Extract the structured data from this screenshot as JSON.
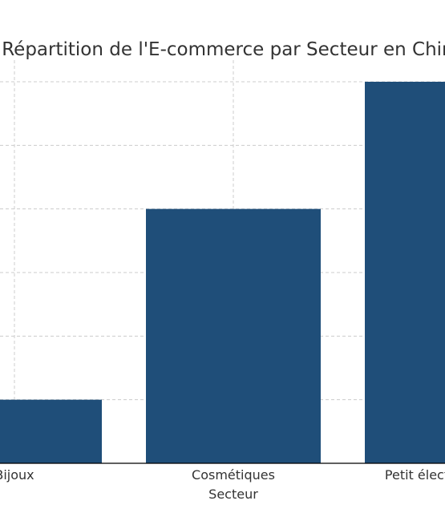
{
  "chart_data": {
    "type": "bar",
    "title": "Répartition de l'E-commerce par Secteur en Chine",
    "xlabel": "Secteur",
    "ylabel": "",
    "categories": [
      "Bijoux",
      "Cosmétiques",
      "Petit électroménager"
    ],
    "values": [
      10,
      40,
      60
    ],
    "ylim": [
      0,
      60
    ],
    "yticks": [
      0,
      10,
      20,
      30,
      40,
      50,
      60
    ],
    "grid": true,
    "colors": {
      "bar": "#1f4e79",
      "grid": "#cccccc",
      "text": "#333333"
    }
  }
}
